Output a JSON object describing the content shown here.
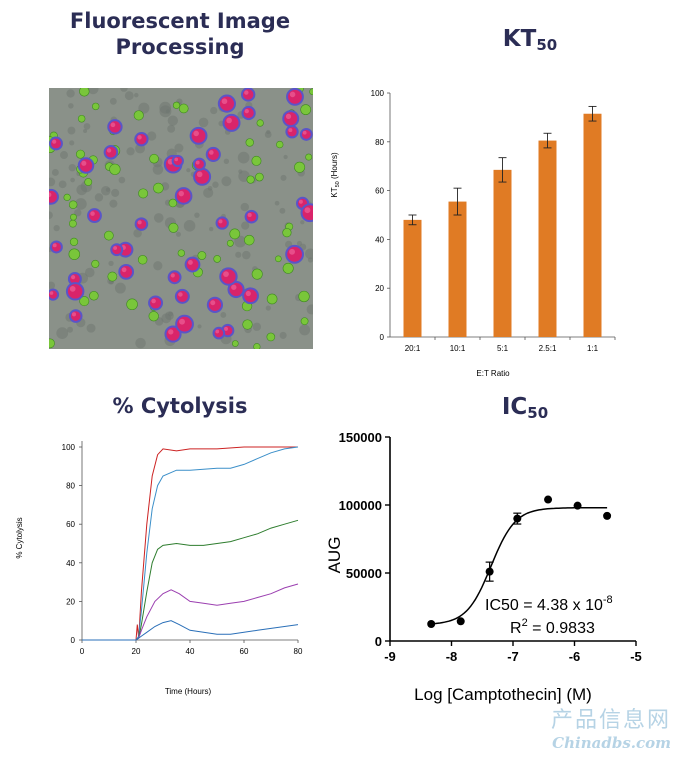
{
  "panels": {
    "fluor_title": "Fluorescent Image Processing",
    "kt_title_main": "KT",
    "kt_title_sub": "50",
    "cyto_title": "% Cytolysis",
    "ic_title_main": "IC",
    "ic_title_sub": "50"
  },
  "colors": {
    "title": "#2b2d55",
    "bar": "#e07b24",
    "micro_bg": "#8a9189",
    "cell_red": "#d9246a",
    "cell_ring": "#5a55c8",
    "cell_green": "#79c63a"
  },
  "watermark": {
    "cn": "产品信息网",
    "en": "Chinadbs.com"
  },
  "chart_data": [
    {
      "type": "bar",
      "categories": [
        "20:1",
        "10:1",
        "5:1",
        "2.5:1",
        "1:1"
      ],
      "values": [
        48,
        55.5,
        68.5,
        80.5,
        91.5
      ],
      "errors": [
        2,
        5.5,
        5,
        3,
        3
      ],
      "xlabel": "E:T Ratio",
      "ylabel_main": "KT",
      "ylabel_sub": "50",
      "ylabel_unit": " (Hours)",
      "ylim": [
        0,
        100
      ],
      "yticks": [
        0,
        20,
        40,
        60,
        80,
        100
      ]
    },
    {
      "type": "line",
      "xlabel": "Time (Hours)",
      "ylabel": "% Cytolysis",
      "xlim": [
        0,
        80
      ],
      "ylim": [
        0,
        100
      ],
      "xticks": [
        0,
        20,
        40,
        60,
        80
      ],
      "yticks": [
        0,
        20,
        40,
        60,
        80,
        100
      ],
      "series": [
        {
          "color": "#cc2222",
          "points": [
            [
              0,
              0
            ],
            [
              20,
              0
            ],
            [
              20.5,
              8
            ],
            [
              21,
              1
            ],
            [
              22,
              25
            ],
            [
              24,
              60
            ],
            [
              26,
              85
            ],
            [
              28,
              96
            ],
            [
              30,
              99
            ],
            [
              35,
              98
            ],
            [
              40,
              99
            ],
            [
              50,
              99
            ],
            [
              60,
              100
            ],
            [
              70,
              100
            ],
            [
              80,
              100
            ]
          ]
        },
        {
          "color": "#3b8fc9",
          "points": [
            [
              0,
              0
            ],
            [
              20,
              0
            ],
            [
              21,
              2
            ],
            [
              22,
              15
            ],
            [
              24,
              45
            ],
            [
              26,
              68
            ],
            [
              28,
              80
            ],
            [
              30,
              85
            ],
            [
              35,
              88
            ],
            [
              40,
              88
            ],
            [
              50,
              89
            ],
            [
              55,
              89
            ],
            [
              60,
              91
            ],
            [
              65,
              94
            ],
            [
              70,
              97
            ],
            [
              75,
              99
            ],
            [
              80,
              100
            ]
          ]
        },
        {
          "color": "#2e7d2e",
          "points": [
            [
              0,
              0
            ],
            [
              20,
              0
            ],
            [
              21,
              1
            ],
            [
              22,
              8
            ],
            [
              24,
              25
            ],
            [
              26,
              40
            ],
            [
              28,
              47
            ],
            [
              30,
              49
            ],
            [
              35,
              50
            ],
            [
              40,
              49
            ],
            [
              45,
              49
            ],
            [
              50,
              50
            ],
            [
              55,
              51
            ],
            [
              60,
              53
            ],
            [
              65,
              55
            ],
            [
              70,
              58
            ],
            [
              75,
              60
            ],
            [
              80,
              62
            ]
          ]
        },
        {
          "color": "#9b3fb0",
          "points": [
            [
              0,
              0
            ],
            [
              20,
              0
            ],
            [
              21,
              1
            ],
            [
              22,
              5
            ],
            [
              24,
              12
            ],
            [
              27,
              20
            ],
            [
              30,
              24
            ],
            [
              33,
              26
            ],
            [
              36,
              24
            ],
            [
              40,
              20
            ],
            [
              45,
              19
            ],
            [
              50,
              18
            ],
            [
              55,
              19
            ],
            [
              60,
              20
            ],
            [
              65,
              22
            ],
            [
              70,
              24
            ],
            [
              75,
              27
            ],
            [
              80,
              29
            ]
          ]
        },
        {
          "color": "#2a6fb8",
          "points": [
            [
              0,
              0
            ],
            [
              20,
              0
            ],
            [
              21,
              1
            ],
            [
              22,
              2
            ],
            [
              24,
              4
            ],
            [
              27,
              7
            ],
            [
              30,
              9
            ],
            [
              33,
              10
            ],
            [
              36,
              8
            ],
            [
              40,
              5
            ],
            [
              45,
              4
            ],
            [
              50,
              3
            ],
            [
              55,
              3
            ],
            [
              60,
              4
            ],
            [
              65,
              5
            ],
            [
              70,
              6
            ],
            [
              75,
              7
            ],
            [
              80,
              8
            ]
          ]
        }
      ]
    },
    {
      "type": "scatter",
      "xlabel": "Log [Camptothecin] (M)",
      "ylabel": "AUG",
      "xlim": [
        -9,
        -5
      ],
      "ylim": [
        0,
        150000
      ],
      "xticks": [
        "-9",
        "-8",
        "-7",
        "-6",
        "-5"
      ],
      "yticks": [
        "0",
        "50000",
        "100000",
        "150000"
      ],
      "points": [
        {
          "x": -8.33,
          "y": 12500,
          "err": 0
        },
        {
          "x": -7.85,
          "y": 14500,
          "err": 0
        },
        {
          "x": -7.38,
          "y": 51000,
          "err": 7000
        },
        {
          "x": -6.93,
          "y": 90000,
          "err": 4000
        },
        {
          "x": -6.43,
          "y": 104000,
          "err": 0
        },
        {
          "x": -5.95,
          "y": 99500,
          "err": 0
        },
        {
          "x": -5.47,
          "y": 92000,
          "err": 0
        }
      ],
      "fit": {
        "bottom": 12000,
        "top": 98000,
        "logIC50": -7.358,
        "hill": 2.2,
        "xrange": [
          -8.33,
          -5.47
        ]
      },
      "annotation_ic50": "IC50 = 4.38 x 10",
      "annotation_ic50_exp": "-8",
      "annotation_r2_main": "R",
      "annotation_r2_exp": "2",
      "annotation_r2_value": " = 0.9833"
    }
  ]
}
